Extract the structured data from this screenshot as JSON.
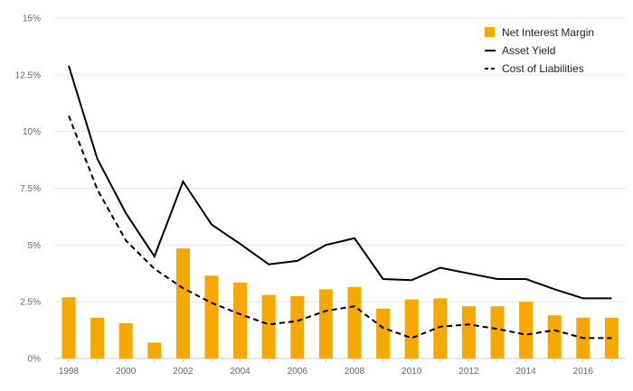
{
  "chart_data": {
    "type": "bar+line",
    "title": "",
    "xlabel": "",
    "ylabel": "",
    "ylim": [
      0,
      15
    ],
    "y_ticks": [
      "0%",
      "2.5%",
      "5%",
      "7.5%",
      "10%",
      "12.5%",
      "15%"
    ],
    "y_tick_values": [
      0,
      2.5,
      5,
      7.5,
      10,
      12.5,
      15
    ],
    "x_ticks": [
      "1998",
      "2000",
      "2002",
      "2004",
      "2006",
      "2008",
      "2010",
      "2012",
      "2014",
      "2016"
    ],
    "x_tick_values": [
      1998,
      2000,
      2002,
      2004,
      2006,
      2008,
      2010,
      2012,
      2014,
      2016
    ],
    "x": [
      1998,
      1999,
      2000,
      2001,
      2002,
      2003,
      2004,
      2005,
      2006,
      2007,
      2008,
      2009,
      2010,
      2011,
      2012,
      2013,
      2014,
      2015,
      2016,
      2017
    ],
    "grid": true,
    "legend_position": "top-right",
    "series": [
      {
        "name": "Net Interest Margin",
        "kind": "bar",
        "color": "#F5A800",
        "values": [
          2.7,
          1.8,
          1.55,
          0.7,
          4.85,
          3.65,
          3.35,
          2.8,
          2.75,
          3.05,
          3.15,
          2.2,
          2.6,
          2.65,
          2.3,
          2.3,
          2.5,
          1.9,
          1.8,
          1.8
        ]
      },
      {
        "name": "Asset Yield",
        "kind": "line",
        "style": "solid",
        "color": "#000000",
        "values": [
          12.9,
          8.8,
          6.4,
          4.5,
          7.8,
          5.9,
          5.05,
          4.15,
          4.3,
          5.0,
          5.3,
          3.5,
          3.45,
          4.0,
          3.75,
          3.5,
          3.5,
          3.05,
          2.65,
          2.65
        ]
      },
      {
        "name": "Cost of Liabilities",
        "kind": "line",
        "style": "dashed",
        "color": "#000000",
        "values": [
          10.7,
          7.45,
          5.2,
          3.95,
          3.1,
          2.45,
          1.95,
          1.5,
          1.65,
          2.1,
          2.3,
          1.35,
          0.9,
          1.4,
          1.5,
          1.3,
          1.05,
          1.25,
          0.9,
          0.9
        ]
      }
    ]
  }
}
